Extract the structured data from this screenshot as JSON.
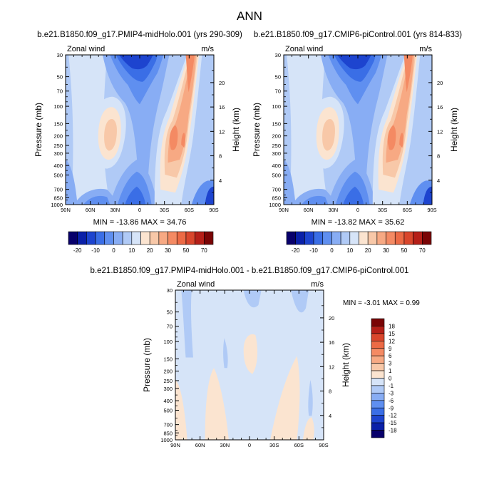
{
  "page_title": "ANN",
  "chart_data": [
    {
      "id": "top-left",
      "type": "contour",
      "title": "b.e21.B1850.f09_g17.PMIP4-midHolo.001 (yrs 290-309)",
      "left_label": "Zonal wind",
      "right_label": "m/s",
      "ylabel": "Pressure (mb)",
      "ylabel_right": "Height (km)",
      "x_ticks": [
        "90N",
        "60N",
        "30N",
        "0",
        "30S",
        "60S",
        "90S"
      ],
      "y_ticks": [
        "30",
        "50",
        "70",
        "100",
        "150",
        "200",
        "250",
        "300",
        "400",
        "500",
        "700",
        "850",
        "1000"
      ],
      "y2_ticks": [
        "20",
        "16",
        "12",
        "8",
        "4"
      ],
      "stats": "MIN = -13.86  MAX = 34.76",
      "min": -13.86,
      "max": 34.76
    },
    {
      "id": "top-right",
      "type": "contour",
      "title": "b.e21.B1850.f09_g17.CMIP6-piControl.001 (yrs 814-833)",
      "left_label": "Zonal wind",
      "right_label": "m/s",
      "ylabel": "Pressure (mb)",
      "ylabel_right": "Height (km)",
      "x_ticks": [
        "90N",
        "60N",
        "30N",
        "0",
        "30S",
        "60S",
        "90S"
      ],
      "y_ticks": [
        "30",
        "50",
        "70",
        "100",
        "150",
        "200",
        "250",
        "300",
        "400",
        "500",
        "700",
        "850",
        "1000"
      ],
      "y2_ticks": [
        "20",
        "16",
        "12",
        "8",
        "4"
      ],
      "stats": "MIN = -13.82  MAX =  35.62",
      "min": -13.82,
      "max": 35.62
    },
    {
      "id": "bottom-diff",
      "type": "contour",
      "title": "b.e21.B1850.f09_g17.PMIP4-midHolo.001 - b.e21.B1850.f09_g17.CMIP6-piControl.001",
      "left_label": "Zonal wind",
      "right_label": "m/s",
      "ylabel": "Pressure (mb)",
      "ylabel_right": "Height (km)",
      "x_ticks": [
        "90N",
        "60N",
        "30N",
        "0",
        "30S",
        "60S",
        "90S"
      ],
      "y_ticks": [
        "30",
        "50",
        "70",
        "100",
        "150",
        "200",
        "250",
        "300",
        "400",
        "500",
        "700",
        "850",
        "1000"
      ],
      "y2_ticks": [
        "20",
        "16",
        "12",
        "8",
        "4"
      ],
      "stats": "MIN =  -3.01  MAX =   0.99",
      "min": -3.01,
      "max": 0.99
    }
  ],
  "colorbars": {
    "top_left": {
      "labels": [
        "-20",
        "-10",
        "0",
        "10",
        "20",
        "30",
        "50",
        "70"
      ],
      "colors": [
        "#08006b",
        "#0a20a8",
        "#1d44cf",
        "#3a6ee6",
        "#5f8ff0",
        "#88adf4",
        "#b0caf6",
        "#d6e4f8",
        "#fbe4d0",
        "#f8c8a8",
        "#f7a983",
        "#f48a63",
        "#ec6a45",
        "#d9462c",
        "#b51f18",
        "#7a0405"
      ]
    },
    "top_right": {
      "labels": [
        "-20",
        "-10",
        "0",
        "10",
        "20",
        "30",
        "50",
        "70"
      ],
      "colors": [
        "#08006b",
        "#0a20a8",
        "#1d44cf",
        "#3a6ee6",
        "#5f8ff0",
        "#88adf4",
        "#b0caf6",
        "#d6e4f8",
        "#fbe4d0",
        "#f8c8a8",
        "#f7a983",
        "#f48a63",
        "#ec6a45",
        "#d9462c",
        "#b51f18",
        "#7a0405"
      ]
    },
    "bottom": {
      "labels": [
        "18",
        "15",
        "12",
        "9",
        "6",
        "3",
        "1",
        "0",
        "-1",
        "-3",
        "-6",
        "-9",
        "-12",
        "-15",
        "-18"
      ],
      "colors": [
        "#7a0405",
        "#b51f18",
        "#d9462c",
        "#ec6a45",
        "#f48a63",
        "#f7a983",
        "#f8c8a8",
        "#fbe4d0",
        "#d6e4f8",
        "#b0caf6",
        "#88adf4",
        "#5f8ff0",
        "#3a6ee6",
        "#1d44cf",
        "#0a20a8",
        "#08006b"
      ]
    }
  }
}
